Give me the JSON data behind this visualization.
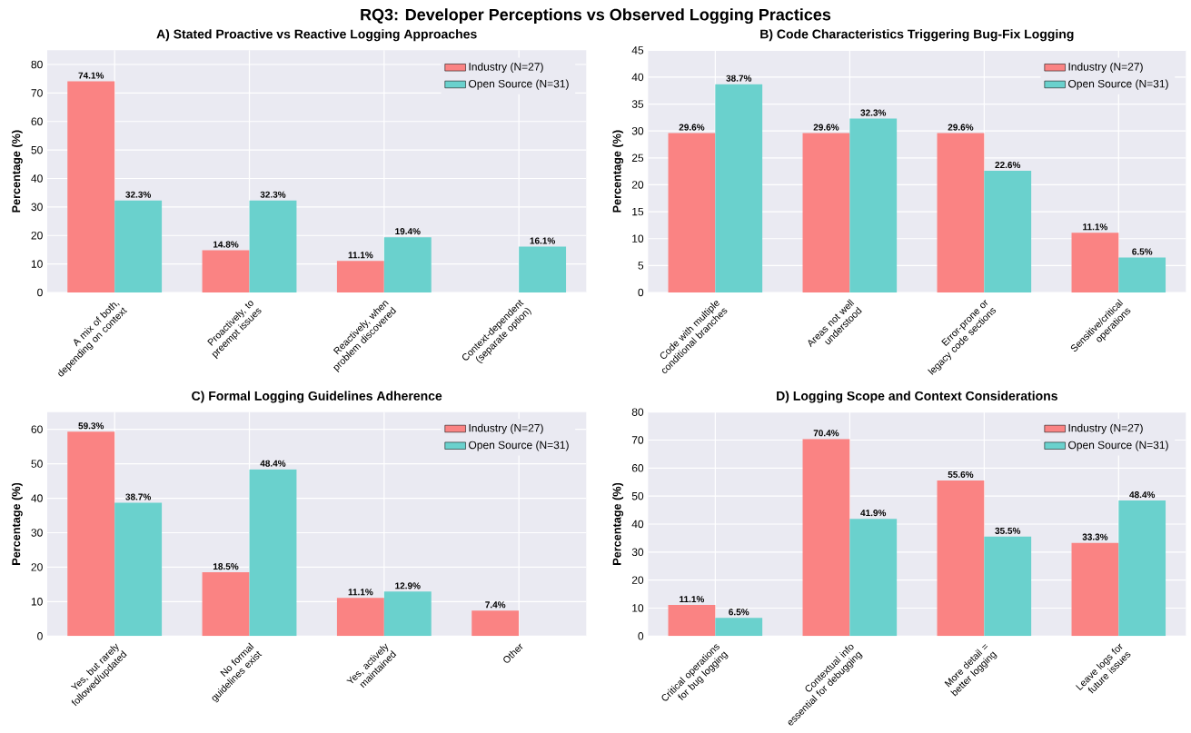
{
  "chart_data": [
    {
      "type": "bar",
      "annotations": [
        "RQ3: Developer Perceptions vs Observed Logging Practices"
      ],
      "title": "A) Stated Proactive vs Reactive Logging Approaches",
      "ylabel": "Percentage (%)",
      "categories": [
        "A mix of both, depending on context",
        "Proactively, to preempt issues",
        "Reactively, when problem discovered",
        "Context-dependent (separate option)"
      ],
      "series": [
        {
          "name": "Industry (N=27)",
          "color": "#fa8383",
          "values": [
            74.1,
            14.8,
            11.1,
            null
          ],
          "value_labels": [
            "74.1%",
            "14.8%",
            "11.1%",
            null
          ]
        },
        {
          "name": "Open Source (N=31)",
          "color": "#6ad1cd",
          "values": [
            32.3,
            32.3,
            19.4,
            16.1
          ],
          "value_labels": [
            "32.3%",
            "32.3%",
            "19.4%",
            "16.1%"
          ]
        }
      ],
      "ylim": [
        0,
        85
      ],
      "yticks": [
        0,
        10,
        20,
        30,
        40,
        50,
        60,
        70,
        80
      ],
      "grid": true,
      "legend": "top right"
    },
    {
      "type": "bar",
      "title": "B) Code Characteristics Triggering Bug-Fix Logging",
      "ylabel": "Percentage (%)",
      "categories": [
        "Code with multiple conditional branches",
        "Areas not well understood",
        "Error-prone or legacy code sections",
        "Sensitive/critical operations"
      ],
      "series": [
        {
          "name": "Industry (N=27)",
          "color": "#fa8383",
          "values": [
            29.6,
            29.6,
            29.6,
            11.1
          ],
          "value_labels": [
            "29.6%",
            "29.6%",
            "29.6%",
            "11.1%"
          ]
        },
        {
          "name": "Open Source (N=31)",
          "color": "#6ad1cd",
          "values": [
            38.7,
            32.3,
            22.6,
            6.5
          ],
          "value_labels": [
            "38.7%",
            "32.3%",
            "22.6%",
            "6.5%"
          ]
        }
      ],
      "ylim": [
        0,
        45
      ],
      "yticks": [
        0,
        5,
        10,
        15,
        20,
        25,
        30,
        35,
        40,
        45
      ],
      "grid": true,
      "legend": "top right"
    },
    {
      "type": "bar",
      "title": "C) Formal Logging Guidelines Adherence",
      "ylabel": "Percentage (%)",
      "categories": [
        "Yes, but rarely followed/updated",
        "No formal guidelines exist",
        "Yes, actively maintained",
        "Other"
      ],
      "series": [
        {
          "name": "Industry (N=27)",
          "color": "#fa8383",
          "values": [
            59.3,
            18.5,
            11.1,
            7.4
          ],
          "value_labels": [
            "59.3%",
            "18.5%",
            "11.1%",
            "7.4%"
          ]
        },
        {
          "name": "Open Source (N=31)",
          "color": "#6ad1cd",
          "values": [
            38.7,
            48.4,
            12.9,
            null
          ],
          "value_labels": [
            "38.7%",
            "48.4%",
            "12.9%",
            null
          ]
        }
      ],
      "ylim": [
        0,
        65
      ],
      "yticks": [
        0,
        10,
        20,
        30,
        40,
        50,
        60
      ],
      "grid": true,
      "legend": "top right"
    },
    {
      "type": "bar",
      "title": "D) Logging Scope and Context Considerations",
      "ylabel": "Percentage (%)",
      "categories": [
        "Critical operations for bug logging",
        "Contextual info essential for debugging",
        "More detail = better logging",
        "Leave logs for future issues"
      ],
      "series": [
        {
          "name": "Industry (N=27)",
          "color": "#fa8383",
          "values": [
            11.1,
            70.4,
            55.6,
            33.3
          ],
          "value_labels": [
            "11.1%",
            "70.4%",
            "55.6%",
            "33.3%"
          ]
        },
        {
          "name": "Open Source (N=31)",
          "color": "#6ad1cd",
          "values": [
            6.5,
            41.9,
            35.5,
            48.4
          ],
          "value_labels": [
            "6.5%",
            "41.9%",
            "35.5%",
            "48.4%"
          ]
        }
      ],
      "ylim": [
        0,
        80
      ],
      "yticks": [
        0,
        10,
        20,
        30,
        40,
        50,
        60,
        70,
        80
      ],
      "grid": true,
      "legend": "top right"
    }
  ]
}
